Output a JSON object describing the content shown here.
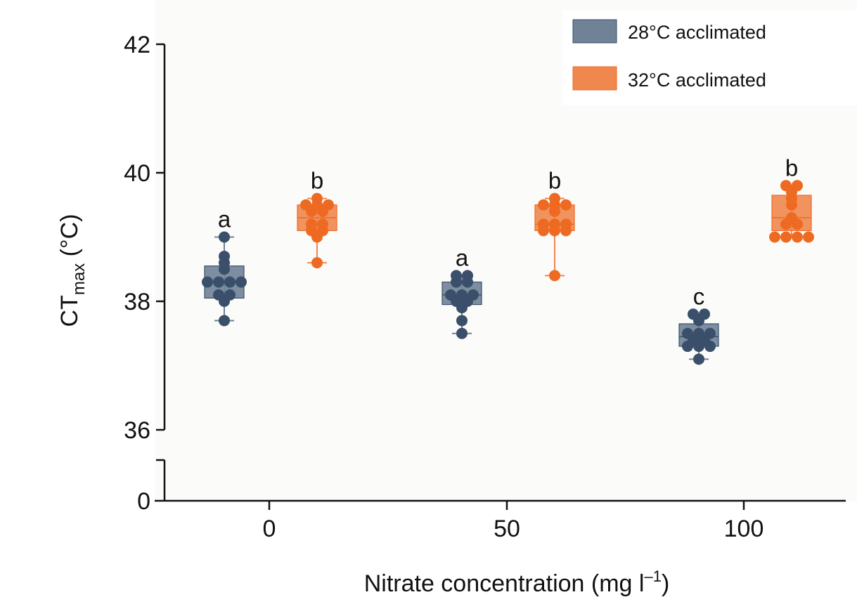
{
  "chart_data": {
    "type": "box",
    "xlabel_main": "Nitrate concentration (mg l",
    "xlabel_sup": "–1",
    "xlabel_close": ")",
    "ylabel_main": "CT",
    "ylabel_sub": "max",
    "ylabel_unit": " (°C)",
    "categories": [
      "0",
      "50",
      "100"
    ],
    "yticks": [
      36,
      38,
      40,
      42
    ],
    "ytick_labels": [
      "36",
      "38",
      "40",
      "42"
    ],
    "ylim": [
      36,
      42
    ],
    "y_break_tick": 0,
    "y_break_tick_label": "0",
    "grid": false,
    "legend_position": "top-right",
    "series": [
      {
        "name": "28°C acclimated",
        "color": "#6f8296",
        "point_color": "#3a4f6a",
        "boxes": [
          {
            "category": "0",
            "min": 37.7,
            "q1": 38.05,
            "median": 38.3,
            "q3": 38.55,
            "max": 39.0,
            "points": [
              39.0,
              38.7,
              38.6,
              38.5,
              38.3,
              38.3,
              38.3,
              38.3,
              38.1,
              38.1,
              38.0,
              37.7
            ]
          },
          {
            "category": "50",
            "min": 37.5,
            "q1": 37.95,
            "median": 38.1,
            "q3": 38.3,
            "max": 38.4,
            "points": [
              38.4,
              38.4,
              38.3,
              38.3,
              38.1,
              38.1,
              38.1,
              38.0,
              38.0,
              37.9,
              37.7,
              37.5
            ]
          },
          {
            "category": "100",
            "min": 37.1,
            "q1": 37.3,
            "median": 37.45,
            "q3": 37.65,
            "max": 37.8,
            "points": [
              37.8,
              37.8,
              37.7,
              37.5,
              37.5,
              37.5,
              37.4,
              37.4,
              37.3,
              37.3,
              37.3,
              37.1
            ]
          }
        ],
        "sig_letters": [
          "a",
          "a",
          "c"
        ]
      },
      {
        "name": "32°C acclimated",
        "color": "#f0874e",
        "point_color": "#ee6a22",
        "boxes": [
          {
            "category": "0",
            "min": 38.6,
            "q1": 39.1,
            "median": 39.3,
            "q3": 39.5,
            "max": 39.6,
            "points": [
              39.6,
              39.5,
              39.5,
              39.5,
              39.4,
              39.4,
              39.2,
              39.2,
              39.1,
              39.1,
              39.0,
              38.6
            ]
          },
          {
            "category": "50",
            "min": 38.4,
            "q1": 39.1,
            "median": 39.2,
            "q3": 39.5,
            "max": 39.6,
            "points": [
              39.6,
              39.5,
              39.5,
              39.5,
              39.4,
              39.2,
              39.2,
              39.2,
              39.1,
              39.1,
              39.1,
              38.4
            ]
          },
          {
            "category": "100",
            "min": 39.0,
            "q1": 39.1,
            "median": 39.3,
            "q3": 39.65,
            "max": 39.8,
            "points": [
              39.8,
              39.8,
              39.7,
              39.6,
              39.5,
              39.3,
              39.2,
              39.2,
              39.0,
              39.0,
              39.0,
              39.0
            ]
          }
        ],
        "sig_letters": [
          "b",
          "b",
          "b"
        ]
      }
    ]
  }
}
